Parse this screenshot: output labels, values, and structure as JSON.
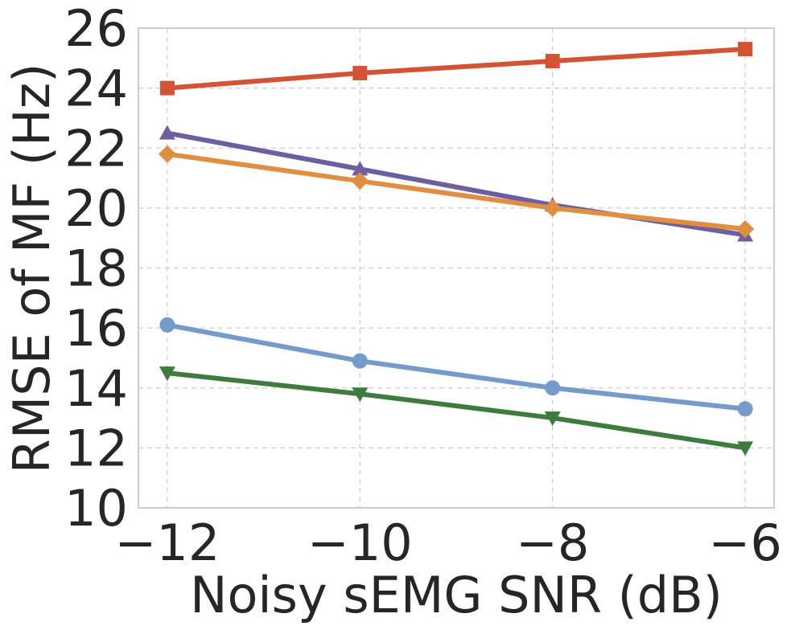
{
  "chart_data": {
    "type": "line",
    "xlabel": "Noisy sEMG SNR (dB)",
    "ylabel": "RMSE of MF (Hz)",
    "x": [
      -12,
      -10,
      -8,
      -6
    ],
    "xticks": [
      "−12",
      "−10",
      "−8",
      "−6"
    ],
    "xlim": [
      -12.3,
      -5.7
    ],
    "yticks": [
      "10",
      "12",
      "14",
      "16",
      "18",
      "20",
      "22",
      "24",
      "26"
    ],
    "ylim": [
      10,
      26
    ],
    "grid": true,
    "series": [
      {
        "values": [
          24.0,
          24.5,
          24.9,
          25.3
        ],
        "color": "#d35434",
        "marker": "square"
      },
      {
        "values": [
          22.5,
          21.3,
          20.1,
          19.1
        ],
        "color": "#6d5ea0",
        "marker": "triangle-up"
      },
      {
        "values": [
          21.8,
          20.9,
          20.0,
          19.3
        ],
        "color": "#df8e42",
        "marker": "diamond"
      },
      {
        "values": [
          16.1,
          14.9,
          14.0,
          13.3
        ],
        "color": "#759bca",
        "marker": "circle"
      },
      {
        "values": [
          14.5,
          13.8,
          13.0,
          12.0
        ],
        "color": "#3d7b3f",
        "marker": "triangle-down"
      }
    ]
  }
}
